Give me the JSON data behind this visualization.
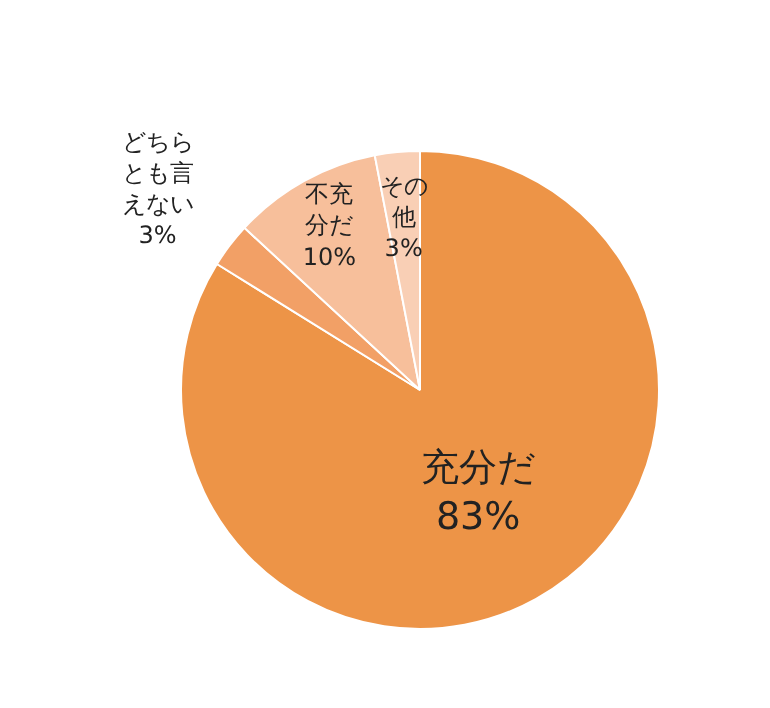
{
  "chart_data": {
    "type": "pie",
    "categories": [
      "充分だ",
      "どちらとも言えない",
      "不充分だ",
      "その他"
    ],
    "values": [
      83,
      3,
      10,
      3
    ],
    "value_labels": [
      "83%",
      "3%",
      "10%",
      "3%"
    ],
    "colors": [
      "#ed9447",
      "#f2a066",
      "#f7bf9b",
      "#f9cfb5"
    ]
  }
}
